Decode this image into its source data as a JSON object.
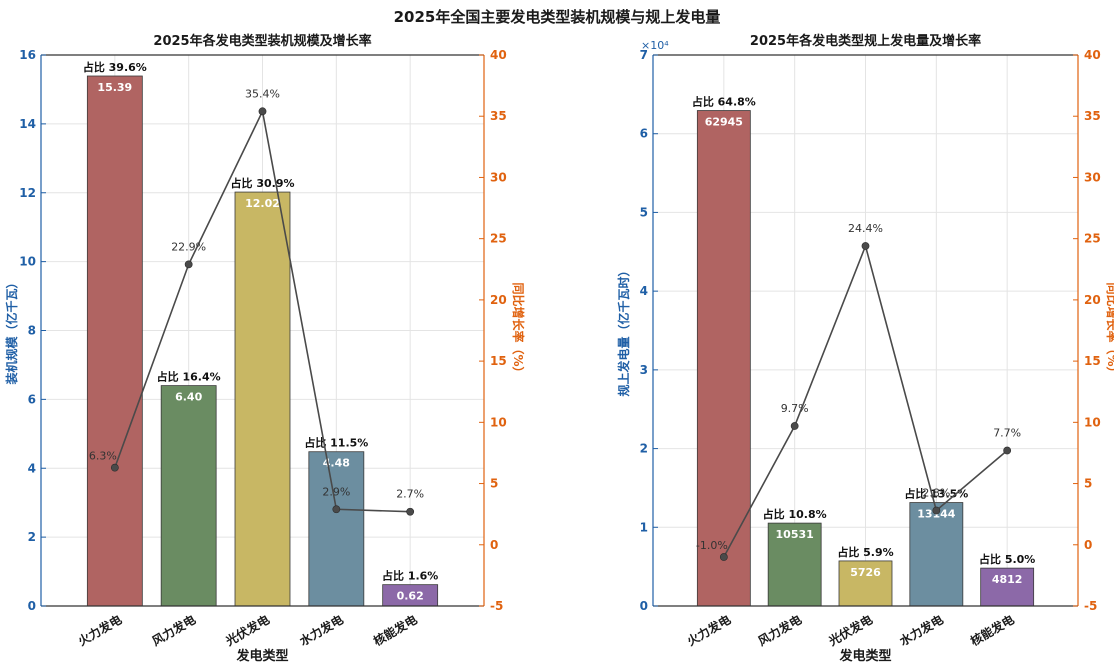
{
  "title": "2025年全国主要发电类型装机规模与规上发电量",
  "colors": {
    "left_axis": "#1f5fa6",
    "right_axis": "#e0620f",
    "line": "#4a4a4a",
    "bars": [
      "#b06462",
      "#6a8c62",
      "#c8b764",
      "#6c8ea0",
      "#8c69a8"
    ]
  },
  "chart_data": [
    {
      "type": "bar",
      "title": "2025年各发电类型装机规模及增长率",
      "xlabel": "发电类型",
      "ylabel": "装机规模（亿千瓦）",
      "y2label": "同比增长率（%）",
      "categories": [
        "火力发电",
        "风力发电",
        "光伏发电",
        "水力发电",
        "核能发电"
      ],
      "values": [
        15.39,
        6.4,
        12.02,
        4.48,
        0.62
      ],
      "value_labels": [
        "15.39",
        "6.40",
        "12.02",
        "4.48",
        "0.62"
      ],
      "share_labels": [
        "占比 39.6%",
        "占比 16.4%",
        "占比 30.9%",
        "占比 11.5%",
        "占比 1.6%"
      ],
      "growth": [
        6.3,
        22.9,
        35.4,
        2.9,
        2.7
      ],
      "growth_labels": [
        "6.3%",
        "22.9%",
        "35.4%",
        "2.9%",
        "2.7%"
      ],
      "ylim": [
        0,
        16
      ],
      "yticks": [
        0,
        2,
        4,
        6,
        8,
        10,
        12,
        14,
        16
      ],
      "y2lim": [
        -5,
        40
      ],
      "y2ticks": [
        -5,
        0,
        5,
        10,
        15,
        20,
        25,
        30,
        35,
        40
      ],
      "grid": true
    },
    {
      "type": "bar",
      "title": "2025年各发电类型规上发电量及增长率",
      "xlabel": "发电类型",
      "ylabel": "规上发电量（亿千瓦时）",
      "y2label": "同比增长率（%）",
      "y_exponent_label": "×10⁴",
      "categories": [
        "火力发电",
        "风力发电",
        "光伏发电",
        "水力发电",
        "核能发电"
      ],
      "values": [
        62945,
        10531,
        5726,
        13144,
        4812
      ],
      "value_labels": [
        "62945",
        "10531",
        "5726",
        "13144",
        "4812"
      ],
      "share_labels": [
        "占比 64.8%",
        "占比 10.8%",
        "占比 5.9%",
        "占比 13.5%",
        "占比 5.0%"
      ],
      "growth": [
        -1.0,
        9.7,
        24.4,
        2.8,
        7.7
      ],
      "growth_labels": [
        "-1.0%",
        "9.7%",
        "24.4%",
        "2.8%",
        "7.7%"
      ],
      "ylim": [
        0,
        70000
      ],
      "yticks": [
        0,
        1,
        2,
        3,
        4,
        5,
        6,
        7
      ],
      "y2lim": [
        -5,
        40
      ],
      "y2ticks": [
        -5,
        0,
        5,
        10,
        15,
        20,
        25,
        30,
        35,
        40
      ],
      "grid": true
    }
  ]
}
